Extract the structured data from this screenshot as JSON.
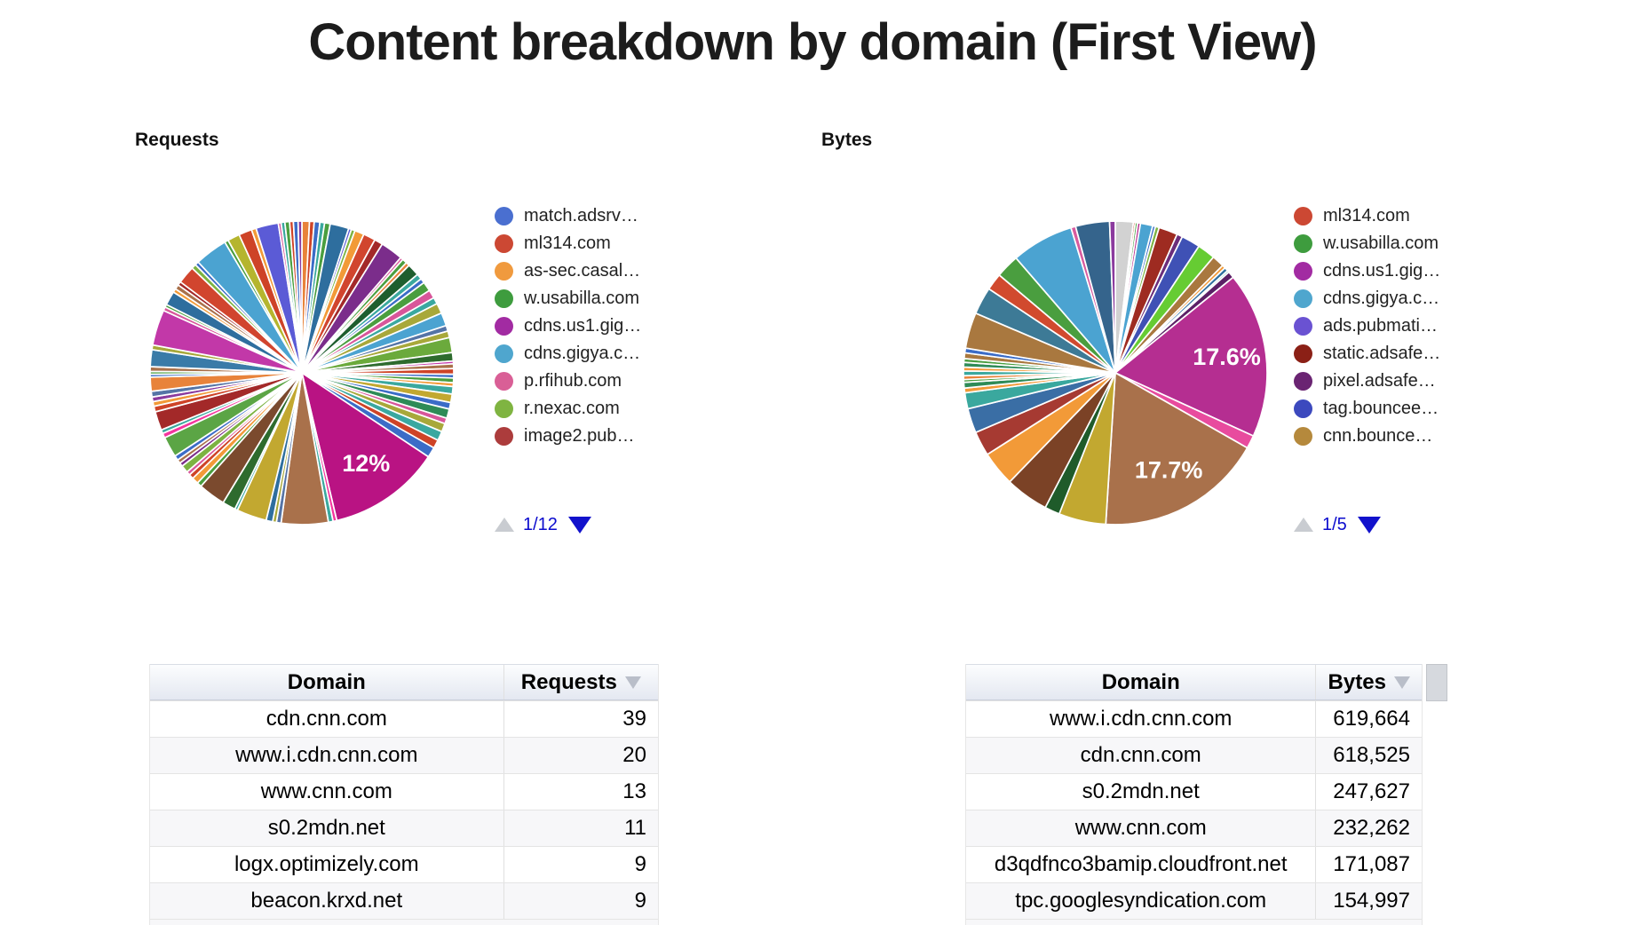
{
  "title": "Content breakdown by domain (First View)",
  "colors": {
    "pager_active": "#1212cc",
    "pager_disabled": "#c9ccd1",
    "pie_label_text": "#ffffff",
    "table_header_top": "#fcfdfe",
    "table_header_bottom": "#e4e8f1",
    "sort_arrow": "#b9bec9"
  },
  "chart_data": [
    {
      "type": "pie",
      "title": "Requests",
      "pager": "1/12",
      "pager_up_enabled": false,
      "pager_down_enabled": true,
      "legend_position": "right",
      "legend": [
        {
          "label": "match.adsrv…",
          "color": "#4a6fd0"
        },
        {
          "label": "ml314.com",
          "color": "#cc4833"
        },
        {
          "label": "as-sec.casal…",
          "color": "#f09a3e"
        },
        {
          "label": "w.usabilla.com",
          "color": "#3e9c3e"
        },
        {
          "label": "cdns.us1.gig…",
          "color": "#a22ba2"
        },
        {
          "label": "cdns.gigya.c…",
          "color": "#4fa6ce"
        },
        {
          "label": "p.rfihub.com",
          "color": "#d95f96"
        },
        {
          "label": "r.nexac.com",
          "color": "#7fb441"
        },
        {
          "label": "image2.pub…",
          "color": "#ac3c3c"
        }
      ],
      "slices": [
        [
          0.8,
          "#e8833a"
        ],
        [
          0.5,
          "#ce4327"
        ],
        [
          0.6,
          "#3b6cc7"
        ],
        [
          0.5,
          "#3aa89e"
        ],
        [
          0.6,
          "#4a9e3f"
        ],
        [
          2.0,
          "#2e6e9e"
        ],
        [
          0.3,
          "#5b5bd6"
        ],
        [
          0.4,
          "#7cb342"
        ],
        [
          1.0,
          "#f29a38"
        ],
        [
          1.3,
          "#d1452e"
        ],
        [
          0.9,
          "#a32929"
        ],
        [
          2.4,
          "#7b2d8b"
        ],
        [
          0.3,
          "#d8569a"
        ],
        [
          0.5,
          "#4a9e3f"
        ],
        [
          0.4,
          "#e8833a"
        ],
        [
          1.3,
          "#1e5e2e"
        ],
        [
          0.6,
          "#3aa89e"
        ],
        [
          0.5,
          "#3b6cc7"
        ],
        [
          1.0,
          "#4a9e3f"
        ],
        [
          0.9,
          "#d8569a"
        ],
        [
          0.7,
          "#3aa8a0"
        ],
        [
          1.1,
          "#a8a83a"
        ],
        [
          1.4,
          "#4ba3d1"
        ],
        [
          0.6,
          "#5574a6"
        ],
        [
          0.7,
          "#a8a83a"
        ],
        [
          1.6,
          "#6baa3c"
        ],
        [
          0.9,
          "#2e6b2e"
        ],
        [
          0.3,
          "#c238a8"
        ],
        [
          0.5,
          "#a9714b"
        ],
        [
          0.6,
          "#ce4327"
        ],
        [
          0.4,
          "#3b6cc7"
        ],
        [
          0.5,
          "#4a9e3f"
        ],
        [
          0.4,
          "#f29a38"
        ],
        [
          0.8,
          "#3aa89e"
        ],
        [
          0.9,
          "#c2a830"
        ],
        [
          0.7,
          "#3b6cc7"
        ],
        [
          1.0,
          "#2e8b57"
        ],
        [
          0.6,
          "#d8569a"
        ],
        [
          0.9,
          "#a8a83a"
        ],
        [
          1.0,
          "#3aa8a0"
        ],
        [
          0.9,
          "#ce4327"
        ],
        [
          1.1,
          "#3b6cc7"
        ],
        [
          12.0,
          "#b91383",
          "12%"
        ],
        [
          0.4,
          "#f4359e"
        ],
        [
          0.5,
          "#3aa89e"
        ],
        [
          5.0,
          "#a9714b"
        ],
        [
          0.5,
          "#5574a6"
        ],
        [
          0.4,
          "#a8a83a"
        ],
        [
          0.7,
          "#2e6e9e"
        ],
        [
          3.2,
          "#c2a830"
        ],
        [
          0.3,
          "#3aa89e"
        ],
        [
          1.4,
          "#2e6b2e"
        ],
        [
          2.9,
          "#7b4a2e"
        ],
        [
          0.5,
          "#4a9e3f"
        ],
        [
          0.7,
          "#f29a38"
        ],
        [
          0.5,
          "#ce4327"
        ],
        [
          0.4,
          "#d8569a"
        ],
        [
          0.8,
          "#7cb342"
        ],
        [
          0.4,
          "#7b2d8b"
        ],
        [
          0.4,
          "#a9714b"
        ],
        [
          0.5,
          "#3b6cc7"
        ],
        [
          2.2,
          "#5ba545"
        ],
        [
          0.5,
          "#f4359e"
        ],
        [
          0.4,
          "#3aa89e"
        ],
        [
          2.0,
          "#a32929"
        ],
        [
          0.6,
          "#ce4327"
        ],
        [
          0.5,
          "#f29a38"
        ],
        [
          0.5,
          "#8b3a9e"
        ],
        [
          0.6,
          "#5574a6"
        ],
        [
          1.5,
          "#e8833a"
        ],
        [
          0.3,
          "#3b6cc7"
        ],
        [
          0.3,
          "#4a9e3f"
        ],
        [
          0.5,
          "#a9714b"
        ],
        [
          1.8,
          "#3a7ba8"
        ],
        [
          0.5,
          "#a8a83a"
        ],
        [
          3.8,
          "#c238a8"
        ],
        [
          0.4,
          "#d8569a"
        ],
        [
          0.3,
          "#4a9e3f"
        ],
        [
          1.5,
          "#2e6e9e"
        ],
        [
          0.4,
          "#f29a38"
        ],
        [
          0.5,
          "#a9714b"
        ],
        [
          0.4,
          "#a32929"
        ],
        [
          1.9,
          "#d1452e"
        ],
        [
          0.5,
          "#7cb342"
        ],
        [
          0.4,
          "#3b6cc7"
        ],
        [
          3.5,
          "#4ba3d1"
        ],
        [
          0.4,
          "#4a9e3f"
        ],
        [
          1.3,
          "#b5b52e"
        ],
        [
          1.4,
          "#ce4327"
        ],
        [
          0.5,
          "#f29a38"
        ],
        [
          2.4,
          "#5b5bd6"
        ],
        [
          0.3,
          "#d8569a"
        ],
        [
          0.4,
          "#3aa89e"
        ],
        [
          0.5,
          "#4a9e3f"
        ],
        [
          0.4,
          "#ce4327"
        ],
        [
          0.5,
          "#3b6cc7"
        ],
        [
          0.4,
          "#8b3a9e"
        ]
      ]
    },
    {
      "type": "pie",
      "title": "Bytes",
      "pager": "1/5",
      "pager_up_enabled": false,
      "pager_down_enabled": true,
      "legend_position": "right",
      "legend": [
        {
          "label": "ml314.com",
          "color": "#cc4833"
        },
        {
          "label": "w.usabilla.com",
          "color": "#3e9c3e"
        },
        {
          "label": "cdns.us1.gig…",
          "color": "#a22ba2"
        },
        {
          "label": "cdns.gigya.c…",
          "color": "#4fa6ce"
        },
        {
          "label": "ads.pubmati…",
          "color": "#6a52d2"
        },
        {
          "label": "static.adsafe…",
          "color": "#8b2016"
        },
        {
          "label": "pixel.adsafe…",
          "color": "#6a2472"
        },
        {
          "label": "tag.bouncee…",
          "color": "#3c49be"
        },
        {
          "label": "cnn.bounce…",
          "color": "#b5893c"
        }
      ],
      "slices": [
        [
          1.9,
          "#d2d2d2"
        ],
        [
          0.2,
          "#ce4327"
        ],
        [
          0.25,
          "#4a9e3f"
        ],
        [
          0.3,
          "#b92b8c"
        ],
        [
          1.3,
          "#4ba3d1"
        ],
        [
          0.3,
          "#3b6cc7"
        ],
        [
          0.4,
          "#7cb342"
        ],
        [
          2.0,
          "#9e2b21"
        ],
        [
          0.6,
          "#6b2d7b"
        ],
        [
          2.0,
          "#3f51b5"
        ],
        [
          1.9,
          "#66cc33"
        ],
        [
          1.3,
          "#a9783f"
        ],
        [
          0.35,
          "#f29a38"
        ],
        [
          0.4,
          "#2e6e9e"
        ],
        [
          0.2,
          "#3aa89e"
        ],
        [
          0.7,
          "#5b1f66"
        ],
        [
          17.6,
          "#b52e91",
          "17.6%"
        ],
        [
          1.4,
          "#e84b9e"
        ],
        [
          17.7,
          "#a9714b",
          "17.7%"
        ],
        [
          5.0,
          "#c2a830"
        ],
        [
          1.6,
          "#1f5b2a"
        ],
        [
          4.6,
          "#7b4226"
        ],
        [
          3.7,
          "#f29a38"
        ],
        [
          2.6,
          "#a63a32"
        ],
        [
          2.6,
          "#3a6ea5"
        ],
        [
          1.7,
          "#3aa89e"
        ],
        [
          0.5,
          "#f29a38"
        ],
        [
          0.6,
          "#2e8b57"
        ],
        [
          0.3,
          "#4a9e3f"
        ],
        [
          0.4,
          "#e8833a"
        ],
        [
          0.5,
          "#3aa89e"
        ],
        [
          0.4,
          "#f29a38"
        ],
        [
          0.5,
          "#2e8b57"
        ],
        [
          0.4,
          "#4a9e3f"
        ],
        [
          0.6,
          "#a9783f"
        ],
        [
          0.5,
          "#3b6cc7"
        ],
        [
          3.8,
          "#a9783f"
        ],
        [
          2.9,
          "#3d7a96"
        ],
        [
          1.8,
          "#d14a2e"
        ],
        [
          2.5,
          "#4a9e3f"
        ],
        [
          6.6,
          "#4ba3d1"
        ],
        [
          0.5,
          "#d85a9e"
        ],
        [
          3.6,
          "#35648c"
        ],
        [
          0.6,
          "#8b3a9e"
        ]
      ]
    },
    {
      "type": "table",
      "columns": [
        "Domain",
        "Requests"
      ],
      "sort_column": "Requests",
      "sort_direction": "desc",
      "rows": [
        [
          "cdn.cnn.com",
          "39"
        ],
        [
          "www.i.cdn.cnn.com",
          "20"
        ],
        [
          "www.cnn.com",
          "13"
        ],
        [
          "s0.2mdn.net",
          "11"
        ],
        [
          "logx.optimizely.com",
          "9"
        ],
        [
          "beacon.krxd.net",
          "9"
        ]
      ]
    },
    {
      "type": "table",
      "columns": [
        "Domain",
        "Bytes"
      ],
      "sort_column": "Bytes",
      "sort_direction": "desc",
      "rows": [
        [
          "www.i.cdn.cnn.com",
          "619,664"
        ],
        [
          "cdn.cnn.com",
          "618,525"
        ],
        [
          "s0.2mdn.net",
          "247,627"
        ],
        [
          "www.cnn.com",
          "232,262"
        ],
        [
          "d3qdfnco3bamip.cloudfront.net",
          "171,087"
        ],
        [
          "tpc.googlesyndication.com",
          "154,997"
        ]
      ]
    }
  ]
}
